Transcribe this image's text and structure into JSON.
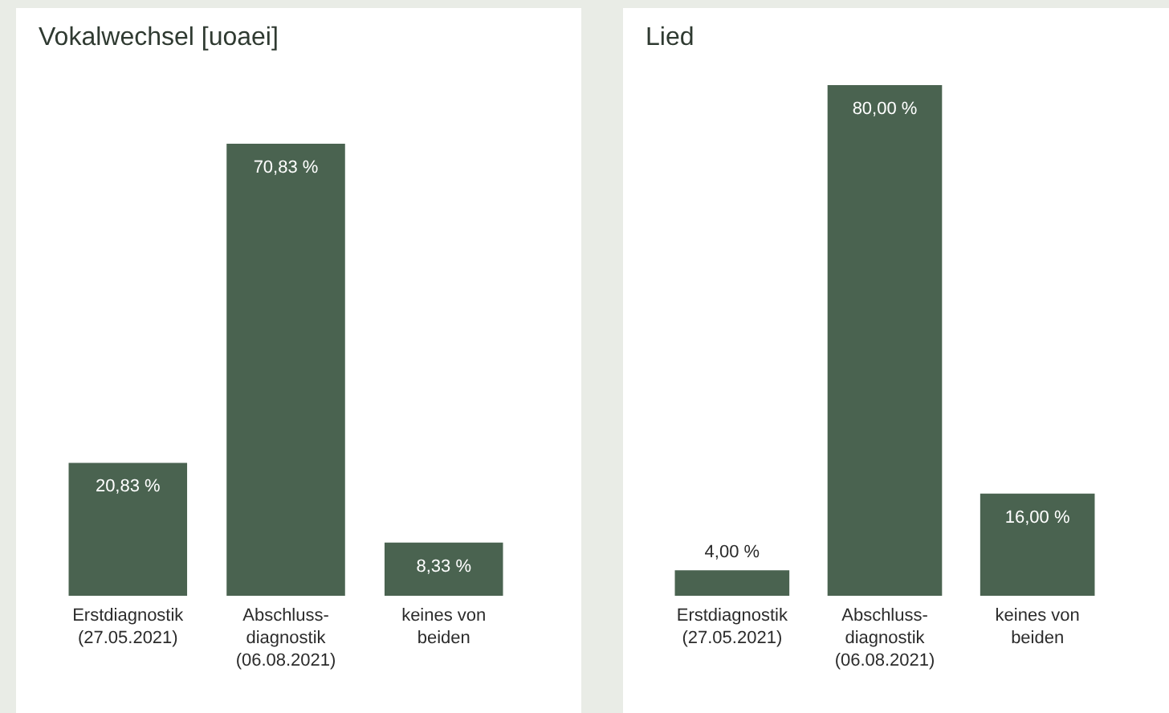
{
  "chart_data": [
    {
      "type": "bar",
      "title": "Vokalwechsel [uoaei]",
      "categories": [
        "Erstdiagnostik\n(27.05.2021)",
        "Abschluss-\ndiagnostik\n(06.08.2021)",
        "keines von\nbeiden"
      ],
      "values": [
        20.83,
        70.83,
        8.33
      ],
      "value_labels": [
        "20,83 %",
        "70,83 %",
        "8,33 %"
      ],
      "color": "#4a6350"
    },
    {
      "type": "bar",
      "title": "Lied",
      "categories": [
        "Erstdiagnostik\n(27.05.2021)",
        "Abschluss-\ndiagnostik\n(06.08.2021)",
        "keines von\nbeiden"
      ],
      "values": [
        4,
        80,
        16
      ],
      "value_labels": [
        "4,00 %",
        "80,00 %",
        "16,00 %"
      ],
      "color": "#4a6350"
    }
  ]
}
